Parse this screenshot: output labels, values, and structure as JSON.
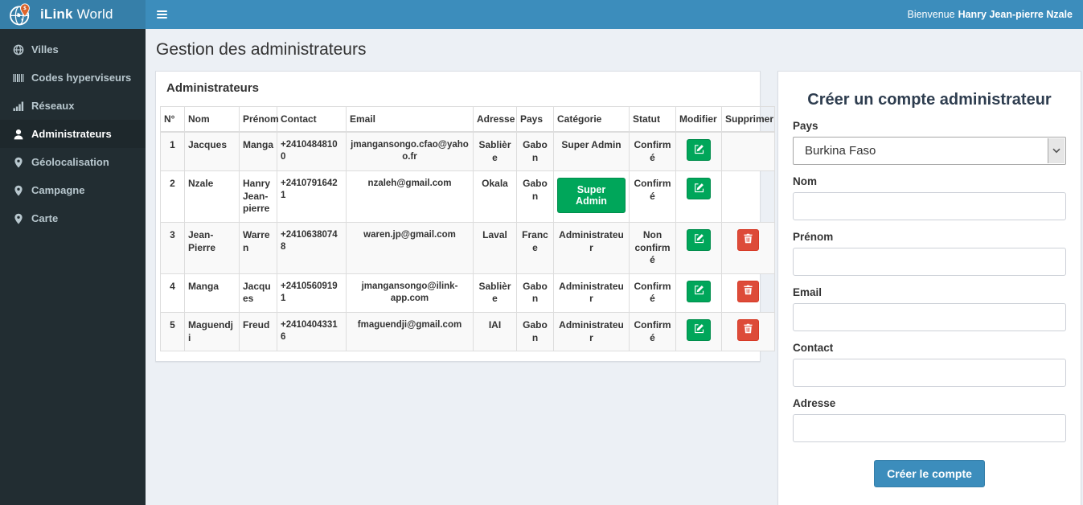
{
  "navbar": {
    "brand_bold": "iLink",
    "brand_rest": " World",
    "welcome_prefix": "Bienvenue",
    "welcome_name": "Hanry Jean-pierre Nzale"
  },
  "sidebar": {
    "items": [
      {
        "label": "Villes",
        "icon": "globe-icon",
        "active": false
      },
      {
        "label": "Codes hyperviseurs",
        "icon": "barcode-icon",
        "active": false
      },
      {
        "label": "Réseaux",
        "icon": "signal-icon",
        "active": false
      },
      {
        "label": "Administrateurs",
        "icon": "user-icon",
        "active": true
      },
      {
        "label": "Géolocalisation",
        "icon": "map-marker-icon",
        "active": false
      },
      {
        "label": "Campagne",
        "icon": "map-marker-icon",
        "active": false
      },
      {
        "label": "Carte",
        "icon": "map-marker-icon",
        "active": false
      }
    ]
  },
  "page": {
    "title": "Gestion des administrateurs"
  },
  "admin_panel": {
    "title": "Administrateurs",
    "table": {
      "columns": [
        "N°",
        "Nom",
        "Prénom",
        "Contact",
        "Email",
        "Adresse",
        "Pays",
        "Catégorie",
        "Statut",
        "Modifier",
        "Supprimer"
      ],
      "rows": [
        {
          "num": "1",
          "nom": "Jacques",
          "prenom": "Manga",
          "contact": "+24104848100",
          "email": "jmangansongo.cfao@yahoo.fr",
          "adresse": "Sablière",
          "pays": "Gabon",
          "categorie": "Super Admin",
          "categorie_badge": false,
          "statut": "Confirmé",
          "deletable": false
        },
        {
          "num": "2",
          "nom": "Nzale",
          "prenom": "Hanry Jean-pierre",
          "contact": "+24107916421",
          "email": "nzaleh@gmail.com",
          "adresse": "Okala",
          "pays": "Gabon",
          "categorie": "Super Admin",
          "categorie_badge": true,
          "statut": "Confirmé",
          "deletable": false
        },
        {
          "num": "3",
          "nom": "Jean-Pierre",
          "prenom": "Warren",
          "contact": "+24106380748",
          "email": "waren.jp@gmail.com",
          "adresse": "Laval",
          "pays": "France",
          "categorie": "Administrateur",
          "categorie_badge": false,
          "statut": "Non confirmé",
          "deletable": true
        },
        {
          "num": "4",
          "nom": "Manga",
          "prenom": "Jacques",
          "contact": "+24105609191",
          "email": "jmangansongo@ilink-app.com",
          "adresse": "Sablière",
          "pays": "Gabon",
          "categorie": "Administrateur",
          "categorie_badge": false,
          "statut": "Confirmé",
          "deletable": true
        },
        {
          "num": "5",
          "nom": "Maguendji",
          "prenom": "Freud",
          "contact": "+24104043316",
          "email": "fmaguendji@gmail.com",
          "adresse": "IAI",
          "pays": "Gabon",
          "categorie": "Administrateur",
          "categorie_badge": false,
          "statut": "Confirmé",
          "deletable": true
        }
      ]
    }
  },
  "form": {
    "title": "Créer un compte administrateur",
    "fields": [
      {
        "label": "Pays",
        "type": "select",
        "value": "Burkina Faso"
      },
      {
        "label": "Nom",
        "type": "text",
        "value": ""
      },
      {
        "label": "Prénom",
        "type": "text",
        "value": ""
      },
      {
        "label": "Email",
        "type": "text",
        "value": ""
      },
      {
        "label": "Contact",
        "type": "text",
        "value": ""
      },
      {
        "label": "Adresse",
        "type": "text",
        "value": ""
      }
    ],
    "submit_label": "Créer le compte"
  },
  "colors": {
    "navbar": "#3c8dbc",
    "logo_bg": "#367fa9",
    "sidebar": "#222d32",
    "sidebar_active": "#1e282c",
    "content_bg": "#ecf0f5",
    "success": "#00a65a",
    "danger": "#dd4b39",
    "primary": "#3c8dbc"
  }
}
